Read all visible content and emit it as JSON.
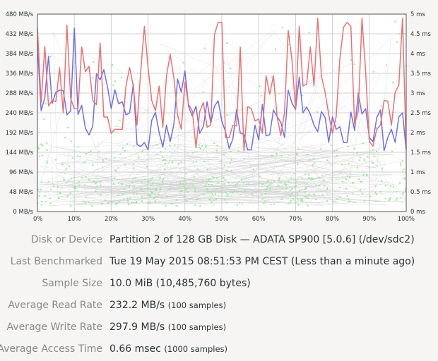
{
  "chart_data": {
    "type": "line",
    "x_tick_labels": [
      "0%",
      "10%",
      "20%",
      "30%",
      "40%",
      "50%",
      "60%",
      "70%",
      "80%",
      "90%",
      "100%"
    ],
    "y_left_tick_labels": [
      "0 MB/s",
      "48 MB/s",
      "96 MB/s",
      "144 MB/s",
      "192 MB/s",
      "240 MB/s",
      "288 MB/s",
      "336 MB/s",
      "384 MB/s",
      "432 MB/s",
      "480 MB/s"
    ],
    "y_right_tick_labels": [
      "0 ms",
      "0.5 ms",
      "1 ms",
      "1.5 ms",
      "2 ms",
      "2.5 ms",
      "3 ms",
      "3.5 ms",
      "4 ms",
      "4.5 ms",
      "5 ms"
    ],
    "xlim": [
      0,
      100
    ],
    "ylim_left": [
      0,
      480
    ],
    "ylim_right": [
      0,
      5
    ],
    "grid": true,
    "colors": {
      "read": "#7070f0",
      "write": "#f07070",
      "access_points": "#90ee90",
      "access_lines": "#c8c8c8"
    },
    "series": [
      {
        "role": "read",
        "x": [
          0,
          1,
          2,
          3,
          4,
          5,
          6,
          7,
          8,
          9,
          10,
          11,
          12,
          13,
          14,
          15,
          16,
          17,
          18,
          19,
          20,
          21,
          22,
          23,
          24,
          25,
          26,
          27,
          28,
          29,
          30,
          31,
          32,
          33,
          34,
          35,
          36,
          37,
          38,
          39,
          40,
          41,
          42,
          43,
          44,
          45,
          46,
          47,
          48,
          49,
          50,
          51,
          52,
          53,
          54,
          55,
          56,
          57,
          58,
          59,
          60,
          61,
          62,
          63,
          64,
          65,
          66,
          67,
          68,
          69,
          70,
          71,
          72,
          73,
          74,
          75,
          76,
          77,
          78,
          79,
          80,
          81,
          82,
          83,
          84,
          85,
          86,
          87,
          88,
          89,
          90,
          91,
          92,
          93,
          94,
          95,
          96,
          97,
          98,
          99,
          100
        ],
        "values": [
          408,
          245,
          277,
          377,
          263,
          290,
          295,
          294,
          235,
          245,
          446,
          236,
          258,
          202,
          186,
          208,
          335,
          320,
          345,
          303,
          250,
          296,
          262,
          267,
          235,
          240,
          310,
          163,
          158,
          168,
          150,
          222,
          241,
          192,
          157,
          210,
          170,
          212,
          322,
          290,
          342,
          255,
          232,
          256,
          190,
          207,
          267,
          215,
          256,
          269,
          220,
          194,
          153,
          177,
          248,
          191,
          187,
          150,
          150,
          210,
          174,
          261,
          184,
          187,
          247,
          230,
          217,
          180,
          295,
          264,
          248,
          327,
          240,
          254,
          237,
          210,
          194,
          243,
          229,
          168,
          230,
          200,
          206,
          168,
          168,
          242,
          197,
          288,
          237,
          250,
          180,
          170,
          228,
          247,
          148,
          180,
          200,
          168,
          230,
          240,
          150
        ]
      },
      {
        "role": "write",
        "x": [
          0,
          1,
          2,
          3,
          4,
          5,
          6,
          7,
          8,
          9,
          10,
          11,
          12,
          13,
          14,
          15,
          16,
          17,
          18,
          19,
          20,
          21,
          22,
          23,
          24,
          25,
          26,
          27,
          28,
          29,
          30,
          31,
          32,
          33,
          34,
          35,
          36,
          37,
          38,
          39,
          40,
          41,
          42,
          43,
          44,
          45,
          46,
          47,
          48,
          49,
          50,
          51,
          52,
          53,
          54,
          55,
          56,
          57,
          58,
          59,
          60,
          61,
          62,
          63,
          64,
          65,
          66,
          67,
          68,
          69,
          70,
          71,
          72,
          73,
          74,
          75,
          76,
          77,
          78,
          79,
          80,
          81,
          82,
          83,
          84,
          85,
          86,
          87,
          88,
          89,
          90,
          91,
          92,
          93,
          94,
          95,
          96,
          97,
          98,
          99,
          100
        ],
        "values": [
          448,
          265,
          401,
          257,
          270,
          267,
          350,
          240,
          453,
          275,
          250,
          250,
          400,
          340,
          353,
          270,
          260,
          410,
          230,
          230,
          190,
          200,
          200,
          200,
          305,
          350,
          304,
          210,
          340,
          450,
          350,
          270,
          245,
          305,
          205,
          330,
          382,
          325,
          235,
          200,
          315,
          260,
          245,
          155,
          243,
          265,
          205,
          210,
          430,
          460,
          460,
          180,
          180,
          210,
          208,
          400,
          148,
          255,
          250,
          220,
          225,
          190,
          330,
          285,
          330,
          230,
          185,
          240,
          440,
          370,
          250,
          450,
          305,
          310,
          400,
          305,
          470,
          330,
          290,
          235,
          190,
          230,
          370,
          448,
          460,
          450,
          212,
          244,
          470,
          340,
          170,
          159,
          200,
          210,
          270,
          268,
          210,
          290,
          307,
          470,
          150
        ]
      }
    ],
    "access_scatter_note_count": 1000
  },
  "info": {
    "rows": [
      {
        "label": "Disk or Device",
        "value": "Partition 2 of 128 GB Disk — ADATA SP900 [5.0.6] (/dev/sdc2)",
        "sub": ""
      },
      {
        "label": "Last Benchmarked",
        "value": "Tue 19 May 2015 08:51:53 PM CEST (Less than a minute ago)",
        "sub": ""
      },
      {
        "label": "Sample Size",
        "value": "10.0 MiB (10,485,760 bytes)",
        "sub": ""
      },
      {
        "label": "Average Read Rate",
        "value": "232.2 MB/s ",
        "sub": "(100 samples)"
      },
      {
        "label": "Average Write Rate",
        "value": "297.9 MB/s ",
        "sub": "(100 samples)"
      },
      {
        "label": "Average Access Time",
        "value": "0.66 msec ",
        "sub": "(1000 samples)"
      }
    ]
  }
}
